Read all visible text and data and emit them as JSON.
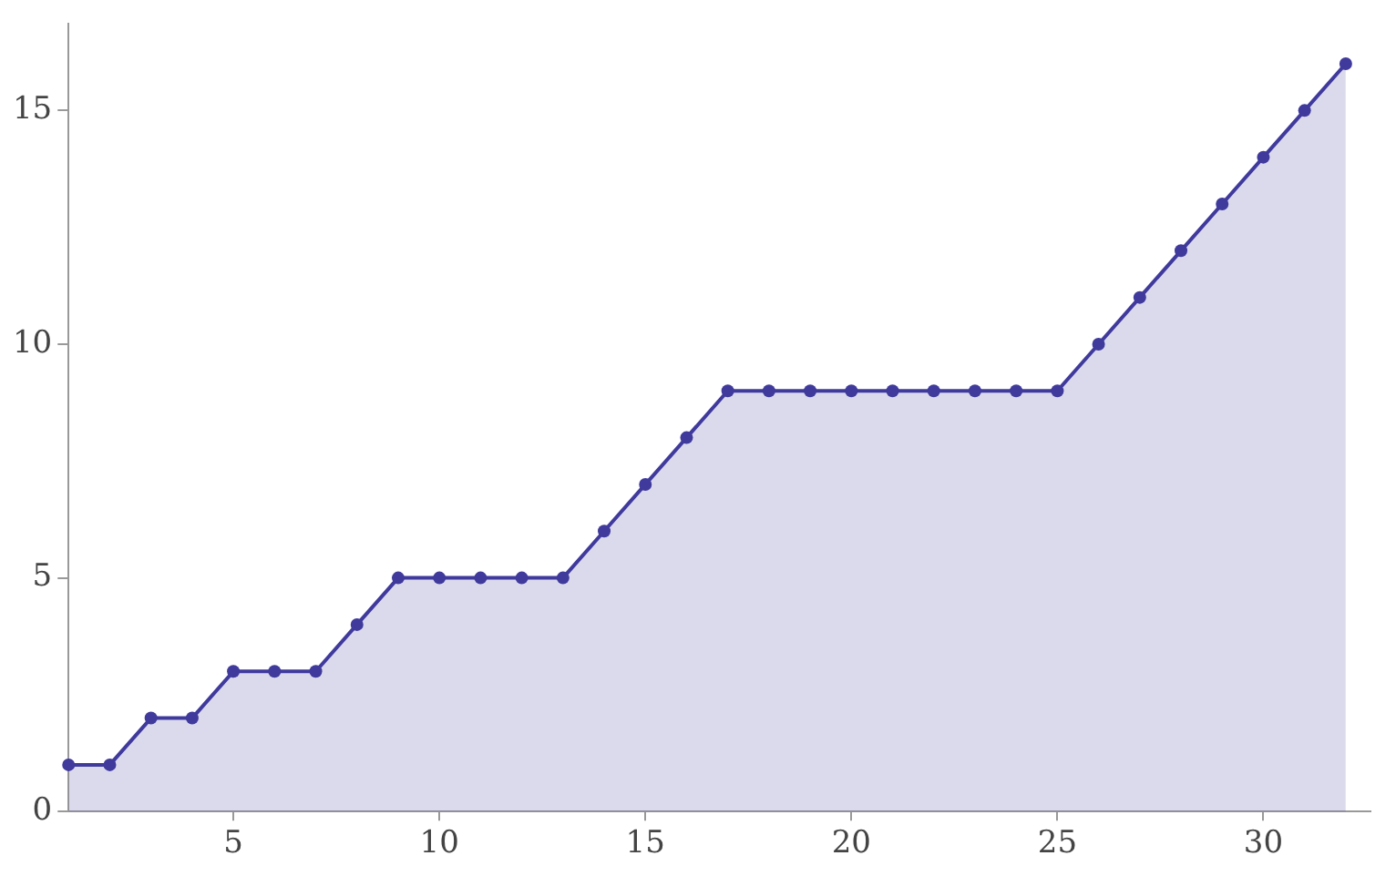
{
  "chart_data": {
    "type": "area",
    "x": [
      1,
      2,
      3,
      4,
      5,
      6,
      7,
      8,
      9,
      10,
      11,
      12,
      13,
      14,
      15,
      16,
      17,
      18,
      19,
      20,
      21,
      22,
      23,
      24,
      25,
      26,
      27,
      28,
      29,
      30,
      31,
      32
    ],
    "series": [
      {
        "color": "#3f3a9c",
        "values": [
          1,
          1,
          2,
          2,
          3,
          3,
          3,
          4,
          5,
          5,
          5,
          5,
          5,
          6,
          7,
          8,
          9,
          9,
          9,
          9,
          9,
          9,
          9,
          9,
          9,
          10,
          11,
          12,
          13,
          14,
          15,
          16
        ]
      }
    ],
    "xlim": [
      1,
      32.6
    ],
    "xticks": [
      5,
      10,
      15,
      20,
      25,
      30
    ],
    "ylim": [
      0,
      16.85
    ],
    "yticks": [
      0,
      5,
      10,
      15
    ],
    "grid": false,
    "legend": false,
    "marker": "circle",
    "line_style": "solid"
  }
}
